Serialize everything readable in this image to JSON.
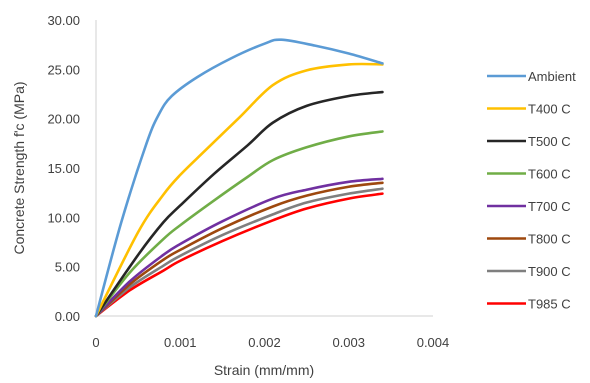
{
  "chart_data": {
    "type": "line",
    "xlabel": "Strain (mm/mm)",
    "ylabel": "Concrete Strength f'c (MPa)",
    "xlim": [
      0,
      0.004
    ],
    "ylim": [
      0,
      30
    ],
    "x_ticks": [
      "0",
      "0.001",
      "0.002",
      "0.003",
      "0.004"
    ],
    "x_tick_values": [
      0,
      0.001,
      0.002,
      0.003,
      0.004
    ],
    "y_ticks": [
      "0.00",
      "5.00",
      "10.00",
      "15.00",
      "20.00",
      "25.00",
      "30.00"
    ],
    "y_tick_values": [
      0,
      5,
      10,
      15,
      20,
      25,
      30
    ],
    "grid": false,
    "legend_position": "right",
    "series": [
      {
        "name": "Ambient",
        "color": "#5B9BD5",
        "points": [
          [
            0,
            0
          ],
          [
            0.0003,
            9.5
          ],
          [
            0.0006,
            17.5
          ],
          [
            0.00075,
            20.5
          ],
          [
            0.0009,
            22.3
          ],
          [
            0.0012,
            24.2
          ],
          [
            0.0016,
            26.1
          ],
          [
            0.002,
            27.6
          ],
          [
            0.0022,
            28.0
          ],
          [
            0.0026,
            27.4
          ],
          [
            0.003,
            26.6
          ],
          [
            0.0034,
            25.6
          ]
        ]
      },
      {
        "name": "T400 C",
        "color": "#FFC000",
        "points": [
          [
            0,
            0
          ],
          [
            0.0005,
            8.5
          ],
          [
            0.0008,
            12.3
          ],
          [
            0.001,
            14.3
          ],
          [
            0.0013,
            16.8
          ],
          [
            0.0017,
            20.1
          ],
          [
            0.0021,
            23.4
          ],
          [
            0.0025,
            24.9
          ],
          [
            0.003,
            25.5
          ],
          [
            0.0034,
            25.5
          ]
        ]
      },
      {
        "name": "T500 C",
        "color": "#262626",
        "points": [
          [
            0,
            0
          ],
          [
            0.0005,
            6.2
          ],
          [
            0.0008,
            9.5
          ],
          [
            0.001,
            11.2
          ],
          [
            0.0014,
            14.4
          ],
          [
            0.0018,
            17.3
          ],
          [
            0.0021,
            19.6
          ],
          [
            0.0025,
            21.3
          ],
          [
            0.003,
            22.3
          ],
          [
            0.0034,
            22.7
          ]
        ]
      },
      {
        "name": "T600 C",
        "color": "#70AD47",
        "points": [
          [
            0,
            0
          ],
          [
            0.0004,
            4.4
          ],
          [
            0.0008,
            7.8
          ],
          [
            0.001,
            9.2
          ],
          [
            0.0014,
            11.7
          ],
          [
            0.0018,
            14.1
          ],
          [
            0.0021,
            15.8
          ],
          [
            0.0025,
            17.1
          ],
          [
            0.003,
            18.2
          ],
          [
            0.0034,
            18.7
          ]
        ]
      },
      {
        "name": "T700 C",
        "color": "#7030A0",
        "points": [
          [
            0,
            0
          ],
          [
            0.0004,
            3.5
          ],
          [
            0.0008,
            6.2
          ],
          [
            0.001,
            7.3
          ],
          [
            0.0015,
            9.6
          ],
          [
            0.0021,
            11.9
          ],
          [
            0.0025,
            12.8
          ],
          [
            0.003,
            13.6
          ],
          [
            0.0034,
            13.9
          ]
        ]
      },
      {
        "name": "T800 C",
        "color": "#9E480E",
        "points": [
          [
            0,
            0
          ],
          [
            0.0004,
            3.2
          ],
          [
            0.0008,
            5.7
          ],
          [
            0.001,
            6.7
          ],
          [
            0.0015,
            8.9
          ],
          [
            0.0021,
            11.1
          ],
          [
            0.0025,
            12.2
          ],
          [
            0.003,
            13.1
          ],
          [
            0.0034,
            13.5
          ]
        ]
      },
      {
        "name": "T900 C",
        "color": "#7F7F7F",
        "points": [
          [
            0,
            0
          ],
          [
            0.0004,
            2.9
          ],
          [
            0.0008,
            5.1
          ],
          [
            0.001,
            6.1
          ],
          [
            0.0015,
            8.2
          ],
          [
            0.0021,
            10.3
          ],
          [
            0.0025,
            11.5
          ],
          [
            0.003,
            12.4
          ],
          [
            0.0034,
            12.9
          ]
        ]
      },
      {
        "name": "T985 C",
        "color": "#FF0000",
        "points": [
          [
            0,
            0
          ],
          [
            0.0004,
            2.6
          ],
          [
            0.0008,
            4.6
          ],
          [
            0.001,
            5.6
          ],
          [
            0.0015,
            7.6
          ],
          [
            0.0021,
            9.7
          ],
          [
            0.0025,
            10.9
          ],
          [
            0.003,
            11.9
          ],
          [
            0.0034,
            12.4
          ]
        ]
      }
    ]
  }
}
